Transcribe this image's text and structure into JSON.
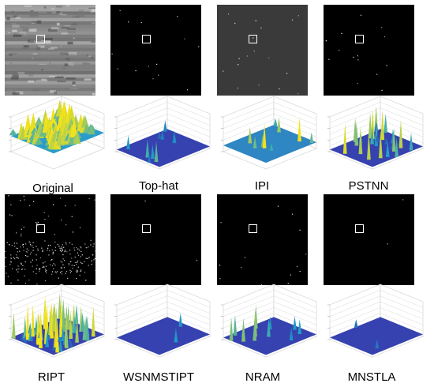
{
  "panels": [
    {
      "id": "original",
      "label": "Original",
      "image_tone": "grey-texture",
      "surface": "dense-clutter"
    },
    {
      "id": "top-hat",
      "label": "Top-hat",
      "image_tone": "black-sparse",
      "surface": "sparse-spikes"
    },
    {
      "id": "ipi",
      "label": "IPI",
      "image_tone": "dark-grey",
      "surface": "plateau-spikes"
    },
    {
      "id": "pstnn",
      "label": "PSTNN",
      "image_tone": "black-sparse",
      "surface": "many-spikes"
    },
    {
      "id": "ript",
      "label": "RIPT",
      "image_tone": "black-noisy",
      "surface": "strong-clutter"
    },
    {
      "id": "wsnmstipt",
      "label": "WSNMSTIPT",
      "image_tone": "black-clean",
      "surface": "single-spike"
    },
    {
      "id": "nram",
      "label": "NRAM",
      "image_tone": "black-sparse",
      "surface": "some-spikes"
    },
    {
      "id": "mnstla",
      "label": "MNSTLA",
      "image_tone": "black-clean",
      "surface": "single-spike"
    }
  ],
  "colors": {
    "surface_low": "#2c2ca8",
    "surface_mid": "#1fa3c9",
    "surface_high": "#f2e21b",
    "roi_box": "#ffffff"
  }
}
